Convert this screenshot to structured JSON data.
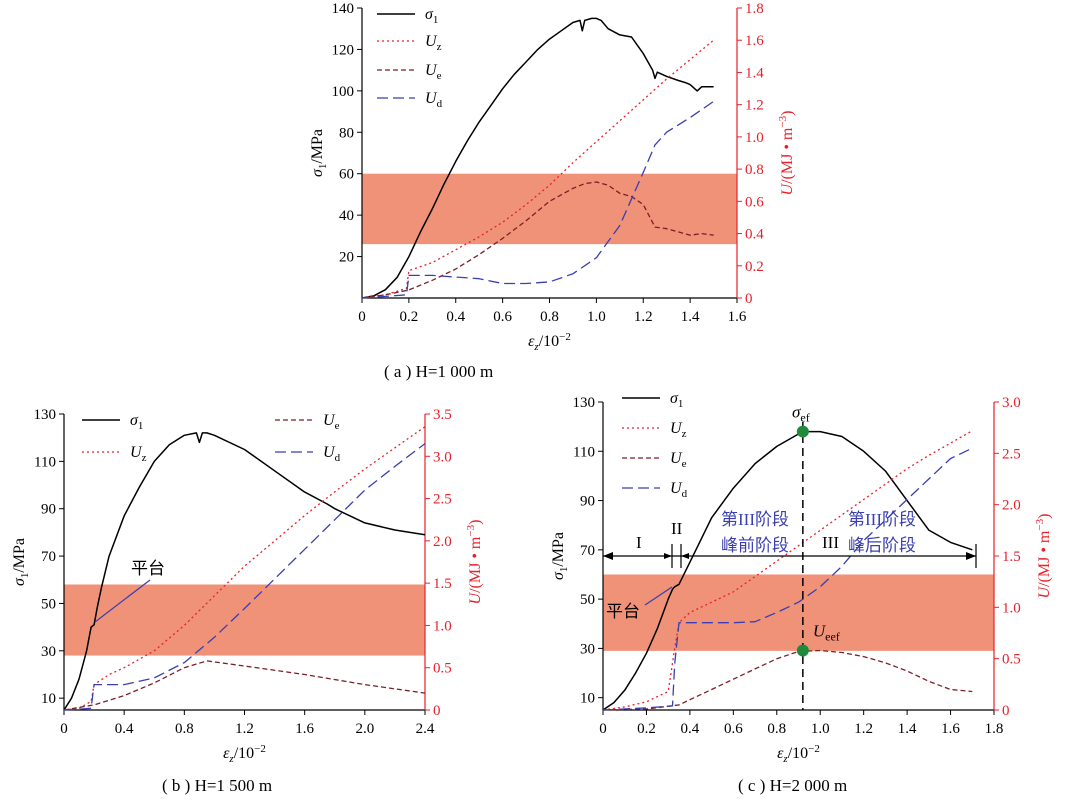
{
  "figure": {
    "captions": [
      "( a ) H=1 000 m",
      "( b ) H=1 500 m",
      "( c ) H=2 000 m"
    ],
    "colors": {
      "sigma": "#000000",
      "Uz": "#e8202a",
      "Ue": "#7a1f2a",
      "Ud": "#3b3fb0",
      "right_axis": "#e8202a",
      "band": "#ef9277",
      "marker": "#1f8a3c"
    }
  },
  "chart_data": [
    {
      "type": "line",
      "panel": "a",
      "xlabel": "εz/10⁻²",
      "ylabel_left": "σ1/MPa",
      "ylabel_right": "U/(MJ • m⁻³)",
      "xlim": [
        0,
        1.6
      ],
      "ylim_left": [
        0,
        140
      ],
      "ylim_right": [
        0,
        1.8
      ],
      "xticks": [
        0,
        0.2,
        0.4,
        0.6,
        0.8,
        1.0,
        1.2,
        1.4,
        1.6
      ],
      "xtick_labels": [
        "0",
        "0.2",
        "0.4",
        "0.6",
        "0.8",
        "1.0",
        "1.2",
        "1.4",
        "1.6"
      ],
      "yticks_left": [
        20,
        40,
        60,
        80,
        100,
        120,
        140
      ],
      "yticks_right": [
        0,
        0.2,
        0.4,
        0.6,
        0.8,
        1.0,
        1.2,
        1.4,
        1.6,
        1.8
      ],
      "ytick_labels_right": [
        "0",
        "0.2",
        "0.4",
        "0.6",
        "0.8",
        "1.0",
        "1.2",
        "1.4",
        "1.6",
        "1.8"
      ],
      "band_left": [
        26,
        60
      ],
      "legend_placement": "top-left",
      "series": [
        {
          "key": "sigma",
          "name": "σ1",
          "axis": "left",
          "x": [
            0,
            0.05,
            0.1,
            0.15,
            0.2,
            0.25,
            0.3,
            0.35,
            0.4,
            0.45,
            0.5,
            0.55,
            0.6,
            0.65,
            0.7,
            0.75,
            0.8,
            0.85,
            0.9,
            0.93,
            0.94,
            0.95,
            0.98,
            1.0,
            1.02,
            1.05,
            1.1,
            1.15,
            1.2,
            1.24,
            1.25,
            1.26,
            1.3,
            1.35,
            1.38,
            1.4,
            1.43,
            1.45,
            1.5
          ],
          "y": [
            0,
            1,
            4,
            10,
            20,
            32,
            43,
            55,
            66,
            76,
            85,
            93,
            101,
            108,
            114,
            120,
            125,
            129,
            133,
            134,
            129,
            134,
            135,
            135,
            134,
            130,
            127,
            126,
            118,
            110,
            106,
            109,
            107,
            105,
            104,
            103,
            100,
            102,
            102
          ]
        },
        {
          "key": "Uz",
          "name": "Uz",
          "axis": "right",
          "x": [
            0,
            0.1,
            0.19,
            0.2,
            0.3,
            0.4,
            0.5,
            0.6,
            0.7,
            0.8,
            0.9,
            1.0,
            1.1,
            1.2,
            1.3,
            1.4,
            1.5
          ],
          "y": [
            0,
            0.02,
            0.06,
            0.17,
            0.22,
            0.3,
            0.38,
            0.47,
            0.58,
            0.7,
            0.84,
            0.97,
            1.1,
            1.23,
            1.36,
            1.48,
            1.6
          ]
        },
        {
          "key": "Ue",
          "name": "Ue",
          "axis": "right",
          "x": [
            0,
            0.1,
            0.2,
            0.3,
            0.4,
            0.5,
            0.6,
            0.7,
            0.8,
            0.9,
            0.95,
            1.0,
            1.05,
            1.1,
            1.15,
            1.2,
            1.25,
            1.3,
            1.35,
            1.4,
            1.45,
            1.5
          ],
          "y": [
            0,
            0.02,
            0.05,
            0.11,
            0.18,
            0.27,
            0.37,
            0.48,
            0.6,
            0.68,
            0.71,
            0.72,
            0.7,
            0.65,
            0.63,
            0.58,
            0.44,
            0.43,
            0.41,
            0.39,
            0.4,
            0.39
          ]
        },
        {
          "key": "Ud",
          "name": "Ud",
          "axis": "right",
          "x": [
            0,
            0.1,
            0.19,
            0.2,
            0.3,
            0.4,
            0.5,
            0.6,
            0.7,
            0.8,
            0.9,
            1.0,
            1.1,
            1.2,
            1.25,
            1.3,
            1.4,
            1.5
          ],
          "y": [
            0,
            0.01,
            0.02,
            0.14,
            0.14,
            0.13,
            0.12,
            0.09,
            0.09,
            0.1,
            0.15,
            0.25,
            0.45,
            0.78,
            0.95,
            1.03,
            1.12,
            1.22
          ]
        }
      ]
    },
    {
      "type": "line",
      "panel": "b",
      "xlabel": "εz/10⁻²",
      "ylabel_left": "σ1/MPa",
      "ylabel_right": "U/(MJ • m⁻³)",
      "xlim": [
        0,
        2.4
      ],
      "ylim_left": [
        5,
        130
      ],
      "ylim_right": [
        0,
        3.5
      ],
      "xticks": [
        0,
        0.4,
        0.8,
        1.2,
        1.6,
        2.0,
        2.4
      ],
      "xtick_labels": [
        "0",
        "0.4",
        "0.8",
        "1.2",
        "1.6",
        "2.0",
        "2.4"
      ],
      "yticks_left": [
        10,
        30,
        50,
        70,
        90,
        110,
        130
      ],
      "yticks_right": [
        0,
        0.5,
        1.0,
        1.5,
        2.0,
        2.5,
        3.0,
        3.5
      ],
      "ytick_labels_right": [
        "0",
        "0.5",
        "1.0",
        "1.5",
        "2.0",
        "2.5",
        "3.0",
        "3.5"
      ],
      "band_left": [
        28,
        58
      ],
      "legend_placement": "top-left and top-right",
      "annotations": [
        {
          "text": "平台"
        }
      ],
      "series": [
        {
          "key": "sigma",
          "name": "σ1",
          "axis": "left",
          "x": [
            0,
            0.05,
            0.1,
            0.15,
            0.18,
            0.2,
            0.22,
            0.25,
            0.3,
            0.4,
            0.5,
            0.6,
            0.7,
            0.8,
            0.88,
            0.9,
            0.92,
            0.95,
            1.0,
            1.2,
            1.4,
            1.6,
            1.75,
            1.8,
            2.0,
            2.2,
            2.4
          ],
          "y": [
            5,
            10,
            18,
            30,
            40,
            41,
            48,
            57,
            70,
            87,
            99,
            110,
            117,
            121,
            122,
            118,
            122,
            122,
            121,
            115,
            106,
            97,
            92,
            90,
            84,
            81,
            79
          ]
        },
        {
          "key": "Uz",
          "name": "Uz",
          "axis": "right",
          "x": [
            0,
            0.1,
            0.18,
            0.2,
            0.3,
            0.4,
            0.6,
            0.8,
            1.0,
            1.2,
            1.4,
            1.6,
            1.8,
            2.0,
            2.2,
            2.4
          ],
          "y": [
            0,
            0.02,
            0.1,
            0.3,
            0.42,
            0.5,
            0.7,
            1.0,
            1.35,
            1.7,
            2.0,
            2.3,
            2.58,
            2.85,
            3.1,
            3.35
          ]
        },
        {
          "key": "Ue",
          "name": "Ue",
          "axis": "right",
          "x": [
            0,
            0.2,
            0.4,
            0.6,
            0.8,
            0.95,
            1.2,
            1.6,
            2.0,
            2.4
          ],
          "y": [
            0,
            0.06,
            0.17,
            0.32,
            0.5,
            0.58,
            0.52,
            0.42,
            0.3,
            0.2
          ]
        },
        {
          "key": "Ud",
          "name": "Ud",
          "axis": "right",
          "x": [
            0,
            0.1,
            0.18,
            0.2,
            0.4,
            0.6,
            0.8,
            1.0,
            1.2,
            1.4,
            1.6,
            1.8,
            2.0,
            2.2,
            2.4
          ],
          "y": [
            0,
            0.01,
            0.02,
            0.3,
            0.3,
            0.38,
            0.56,
            0.86,
            1.2,
            1.55,
            1.9,
            2.25,
            2.6,
            2.88,
            3.15
          ]
        }
      ]
    },
    {
      "type": "line",
      "panel": "c",
      "xlabel": "εz/10⁻²",
      "ylabel_left": "σ1/MPa",
      "ylabel_right": "U/(MJ • m⁻³)",
      "xlim": [
        0,
        1.8
      ],
      "ylim_left": [
        5,
        130
      ],
      "ylim_right": [
        0,
        3.0
      ],
      "xticks": [
        0,
        0.2,
        0.4,
        0.6,
        0.8,
        1.0,
        1.2,
        1.4,
        1.6,
        1.8
      ],
      "xtick_labels": [
        "0",
        "0.2",
        "0.4",
        "0.6",
        "0.8",
        "1.0",
        "1.2",
        "1.4",
        "1.6",
        "1.8"
      ],
      "yticks_left": [
        10,
        30,
        50,
        70,
        90,
        110,
        130
      ],
      "yticks_right": [
        0,
        0.5,
        1.0,
        1.5,
        2.0,
        2.5,
        3.0
      ],
      "ytick_labels_right": [
        "0",
        "0.5",
        "1.0",
        "1.5",
        "2.0",
        "2.5",
        "3.0"
      ],
      "band_left": [
        29,
        60
      ],
      "legend_placement": "top-left",
      "peak_x": 0.92,
      "annotations": [
        {
          "text": "σef",
          "x": 0.92,
          "y": 118,
          "axis": "left"
        },
        {
          "text": "Ueef",
          "x": 0.92,
          "y": 0.58,
          "axis": "right"
        },
        {
          "text": "平台"
        },
        {
          "text": "I"
        },
        {
          "text": "II"
        },
        {
          "text": "III"
        },
        {
          "text": "第III阶段"
        },
        {
          "text": "峰前阶段"
        },
        {
          "text": "第III阶段"
        },
        {
          "text": "峰后阶段"
        }
      ],
      "series": [
        {
          "key": "sigma",
          "name": "σ1",
          "axis": "left",
          "x": [
            0,
            0.05,
            0.1,
            0.15,
            0.2,
            0.25,
            0.3,
            0.32,
            0.33,
            0.35,
            0.4,
            0.5,
            0.6,
            0.7,
            0.8,
            0.9,
            0.92,
            1.0,
            1.1,
            1.2,
            1.3,
            1.4,
            1.5,
            1.6,
            1.7
          ],
          "y": [
            5,
            8,
            13,
            20,
            28,
            38,
            50,
            54,
            55,
            56,
            65,
            83,
            95,
            105,
            112,
            117,
            118,
            118,
            116,
            110,
            102,
            90,
            78,
            73,
            70
          ]
        },
        {
          "key": "Uz",
          "name": "Uz",
          "axis": "right",
          "x": [
            0,
            0.1,
            0.2,
            0.3,
            0.33,
            0.35,
            0.4,
            0.5,
            0.6,
            0.7,
            0.8,
            0.9,
            1.0,
            1.1,
            1.2,
            1.3,
            1.4,
            1.5,
            1.6,
            1.7
          ],
          "y": [
            0,
            0.03,
            0.08,
            0.18,
            0.6,
            0.85,
            0.95,
            1.05,
            1.15,
            1.3,
            1.45,
            1.6,
            1.75,
            1.9,
            2.05,
            2.2,
            2.35,
            2.48,
            2.6,
            2.72
          ]
        },
        {
          "key": "Ue",
          "name": "Ue",
          "axis": "right",
          "x": [
            0,
            0.2,
            0.35,
            0.4,
            0.5,
            0.6,
            0.7,
            0.8,
            0.9,
            1.0,
            1.1,
            1.2,
            1.3,
            1.4,
            1.5,
            1.6,
            1.7
          ],
          "y": [
            0,
            0.01,
            0.05,
            0.1,
            0.2,
            0.3,
            0.4,
            0.5,
            0.57,
            0.58,
            0.56,
            0.52,
            0.46,
            0.38,
            0.28,
            0.2,
            0.18
          ]
        },
        {
          "key": "Ud",
          "name": "Ud",
          "axis": "right",
          "x": [
            0,
            0.2,
            0.32,
            0.33,
            0.35,
            0.4,
            0.5,
            0.6,
            0.7,
            0.8,
            0.9,
            1.0,
            1.1,
            1.2,
            1.3,
            1.4,
            1.5,
            1.6,
            1.7
          ],
          "y": [
            0,
            0.02,
            0.04,
            0.45,
            0.85,
            0.85,
            0.85,
            0.85,
            0.86,
            0.95,
            1.05,
            1.2,
            1.4,
            1.65,
            1.85,
            2.05,
            2.25,
            2.45,
            2.55
          ]
        }
      ]
    }
  ]
}
